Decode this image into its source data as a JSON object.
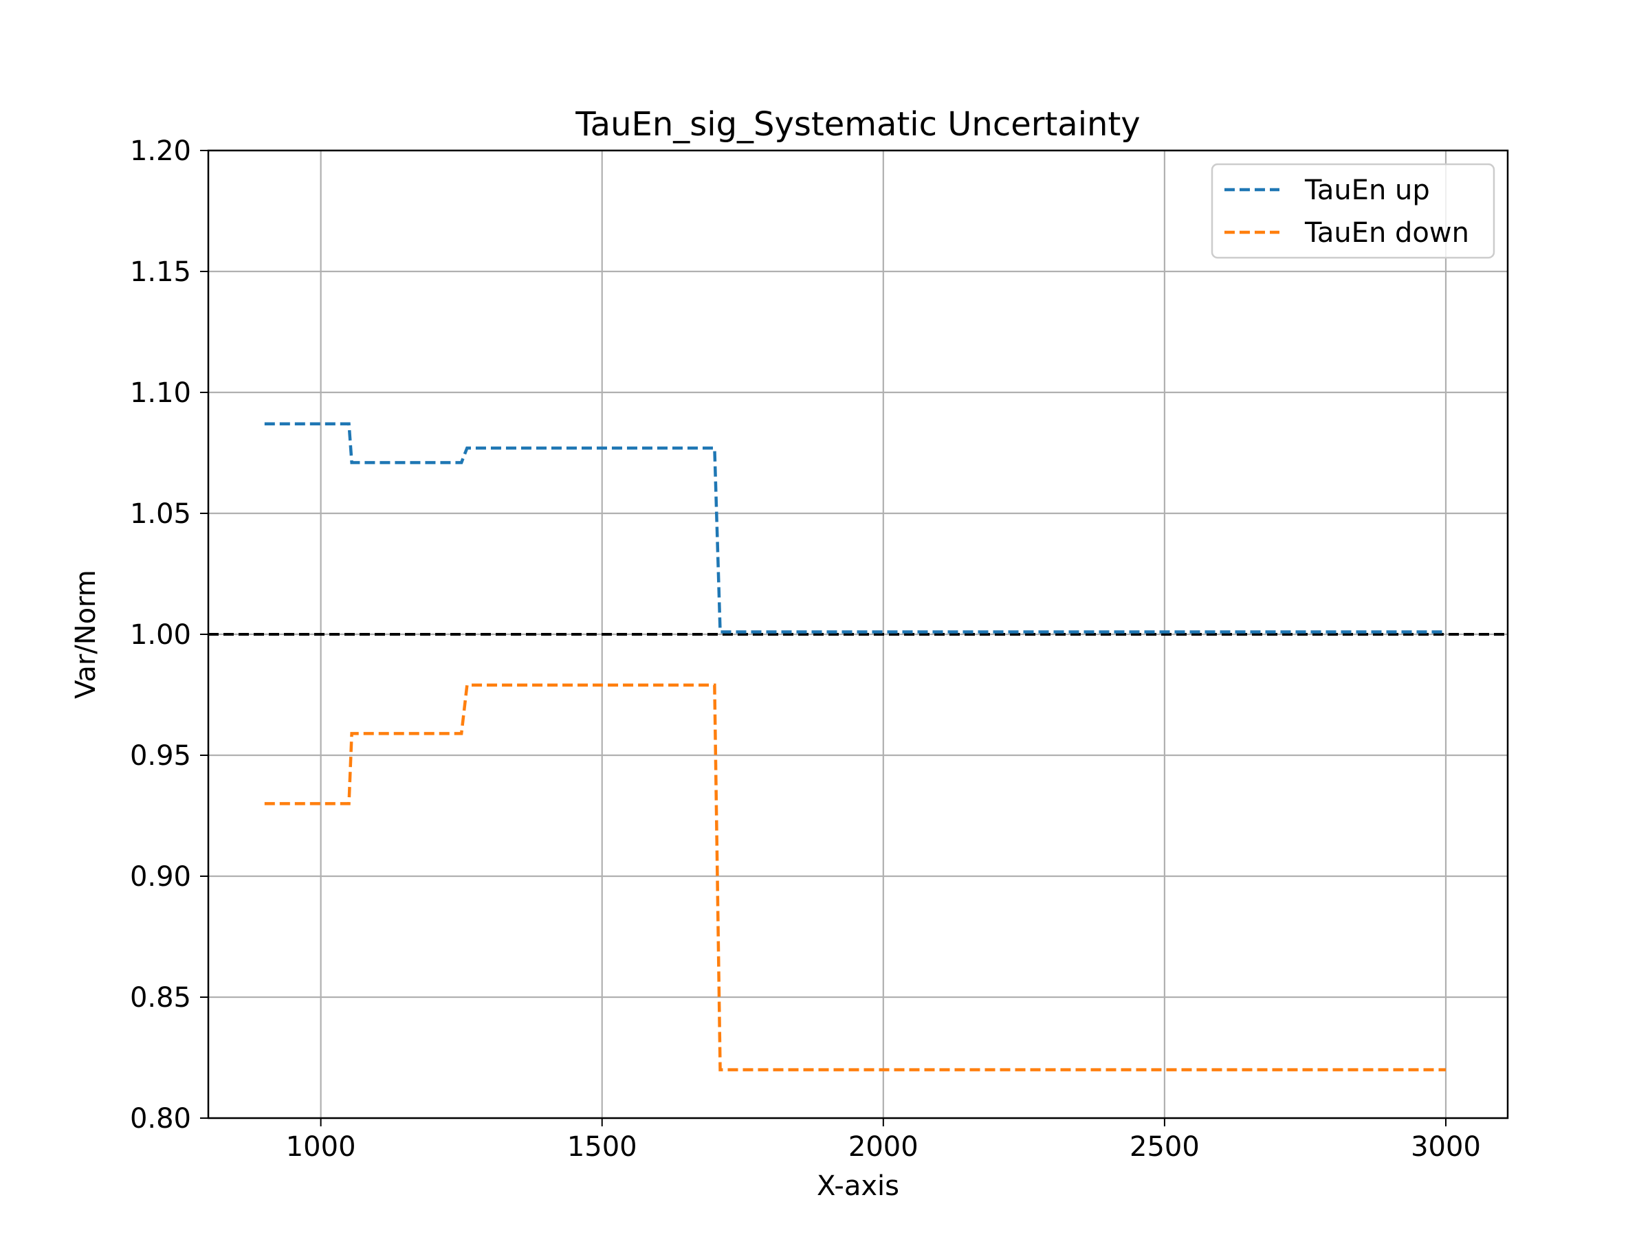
{
  "chart_data": {
    "type": "line",
    "title": "TauEn_sig_Systematic Uncertainty",
    "xlabel": "X-axis",
    "ylabel": "Var/Norm",
    "xlim": [
      800,
      3110
    ],
    "ylim": [
      0.8,
      1.2
    ],
    "xticks": [
      1000,
      1500,
      2000,
      2500,
      3000
    ],
    "yticks": [
      0.8,
      0.85,
      0.9,
      0.95,
      1.0,
      1.05,
      1.1,
      1.15,
      1.2
    ],
    "xtick_labels": [
      "1000",
      "1500",
      "2000",
      "2500",
      "3000"
    ],
    "ytick_labels": [
      "0.80",
      "0.85",
      "0.90",
      "0.95",
      "1.00",
      "1.05",
      "1.10",
      "1.15",
      "1.20"
    ],
    "grid": true,
    "legend_position": "top-right",
    "reference_line": {
      "y": 1.0,
      "color": "#000000",
      "style": "dashed"
    },
    "series": [
      {
        "name": "TauEn up",
        "color": "#1f77b4",
        "style": "dashed",
        "x": [
          900,
          1050,
          1055,
          1250,
          1260,
          1700,
          1710,
          3000
        ],
        "y": [
          1.087,
          1.087,
          1.071,
          1.071,
          1.077,
          1.077,
          1.001,
          1.001
        ]
      },
      {
        "name": "TauEn down",
        "color": "#ff7f0e",
        "style": "dashed",
        "x": [
          900,
          1050,
          1055,
          1250,
          1260,
          1700,
          1710,
          3000
        ],
        "y": [
          0.93,
          0.93,
          0.959,
          0.959,
          0.979,
          0.979,
          0.82,
          0.82
        ]
      }
    ]
  }
}
